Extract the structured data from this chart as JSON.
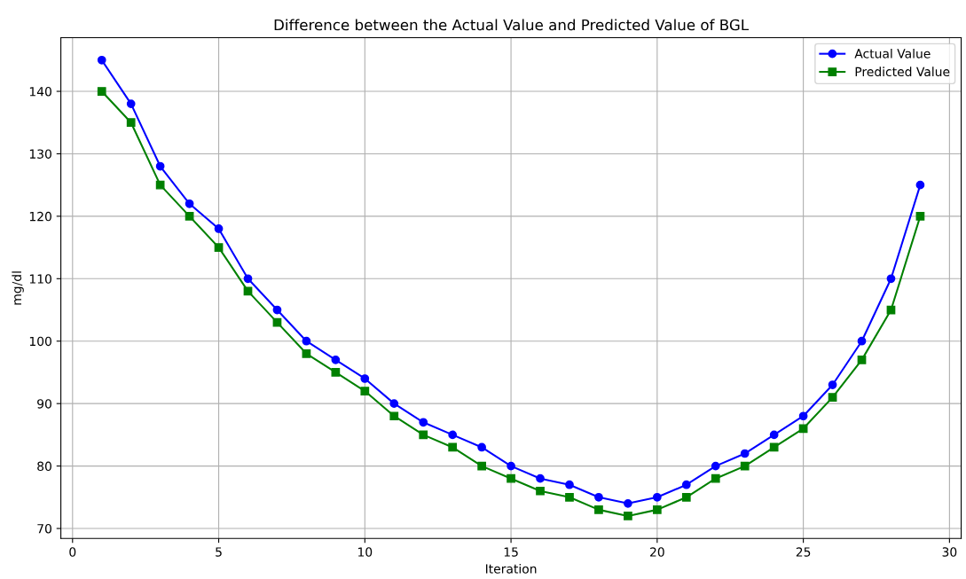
{
  "chart_data": {
    "type": "line",
    "title": "Difference between the Actual Value and Predicted Value of BGL",
    "xlabel": "Iteration",
    "ylabel": "mg/dl",
    "x": [
      1,
      2,
      3,
      4,
      5,
      6,
      7,
      8,
      9,
      10,
      11,
      12,
      13,
      14,
      15,
      16,
      17,
      18,
      19,
      20,
      21,
      22,
      23,
      24,
      25,
      26,
      27,
      28,
      29
    ],
    "series": [
      {
        "name": "Actual Value",
        "color": "#0000ff",
        "marker": "circle",
        "values": [
          145,
          138,
          128,
          122,
          118,
          110,
          105,
          100,
          97,
          94,
          90,
          87,
          85,
          83,
          80,
          78,
          77,
          75,
          74,
          75,
          77,
          80,
          82,
          85,
          88,
          93,
          100,
          110,
          125
        ]
      },
      {
        "name": "Predicted Value",
        "color": "#008000",
        "marker": "square",
        "values": [
          140,
          135,
          125,
          120,
          115,
          108,
          103,
          98,
          95,
          92,
          88,
          85,
          83,
          80,
          78,
          76,
          75,
          73,
          72,
          73,
          75,
          78,
          80,
          83,
          86,
          91,
          97,
          105,
          120
        ]
      }
    ],
    "xlim": [
      -0.4,
      30.4
    ],
    "xticks": [
      0,
      5,
      10,
      15,
      20,
      25,
      30
    ],
    "ylim": [
      68.4,
      148.6
    ],
    "yticks": [
      70,
      80,
      90,
      100,
      110,
      120,
      130,
      140
    ],
    "grid": true,
    "legend": "top right",
    "line_style": "solid"
  }
}
